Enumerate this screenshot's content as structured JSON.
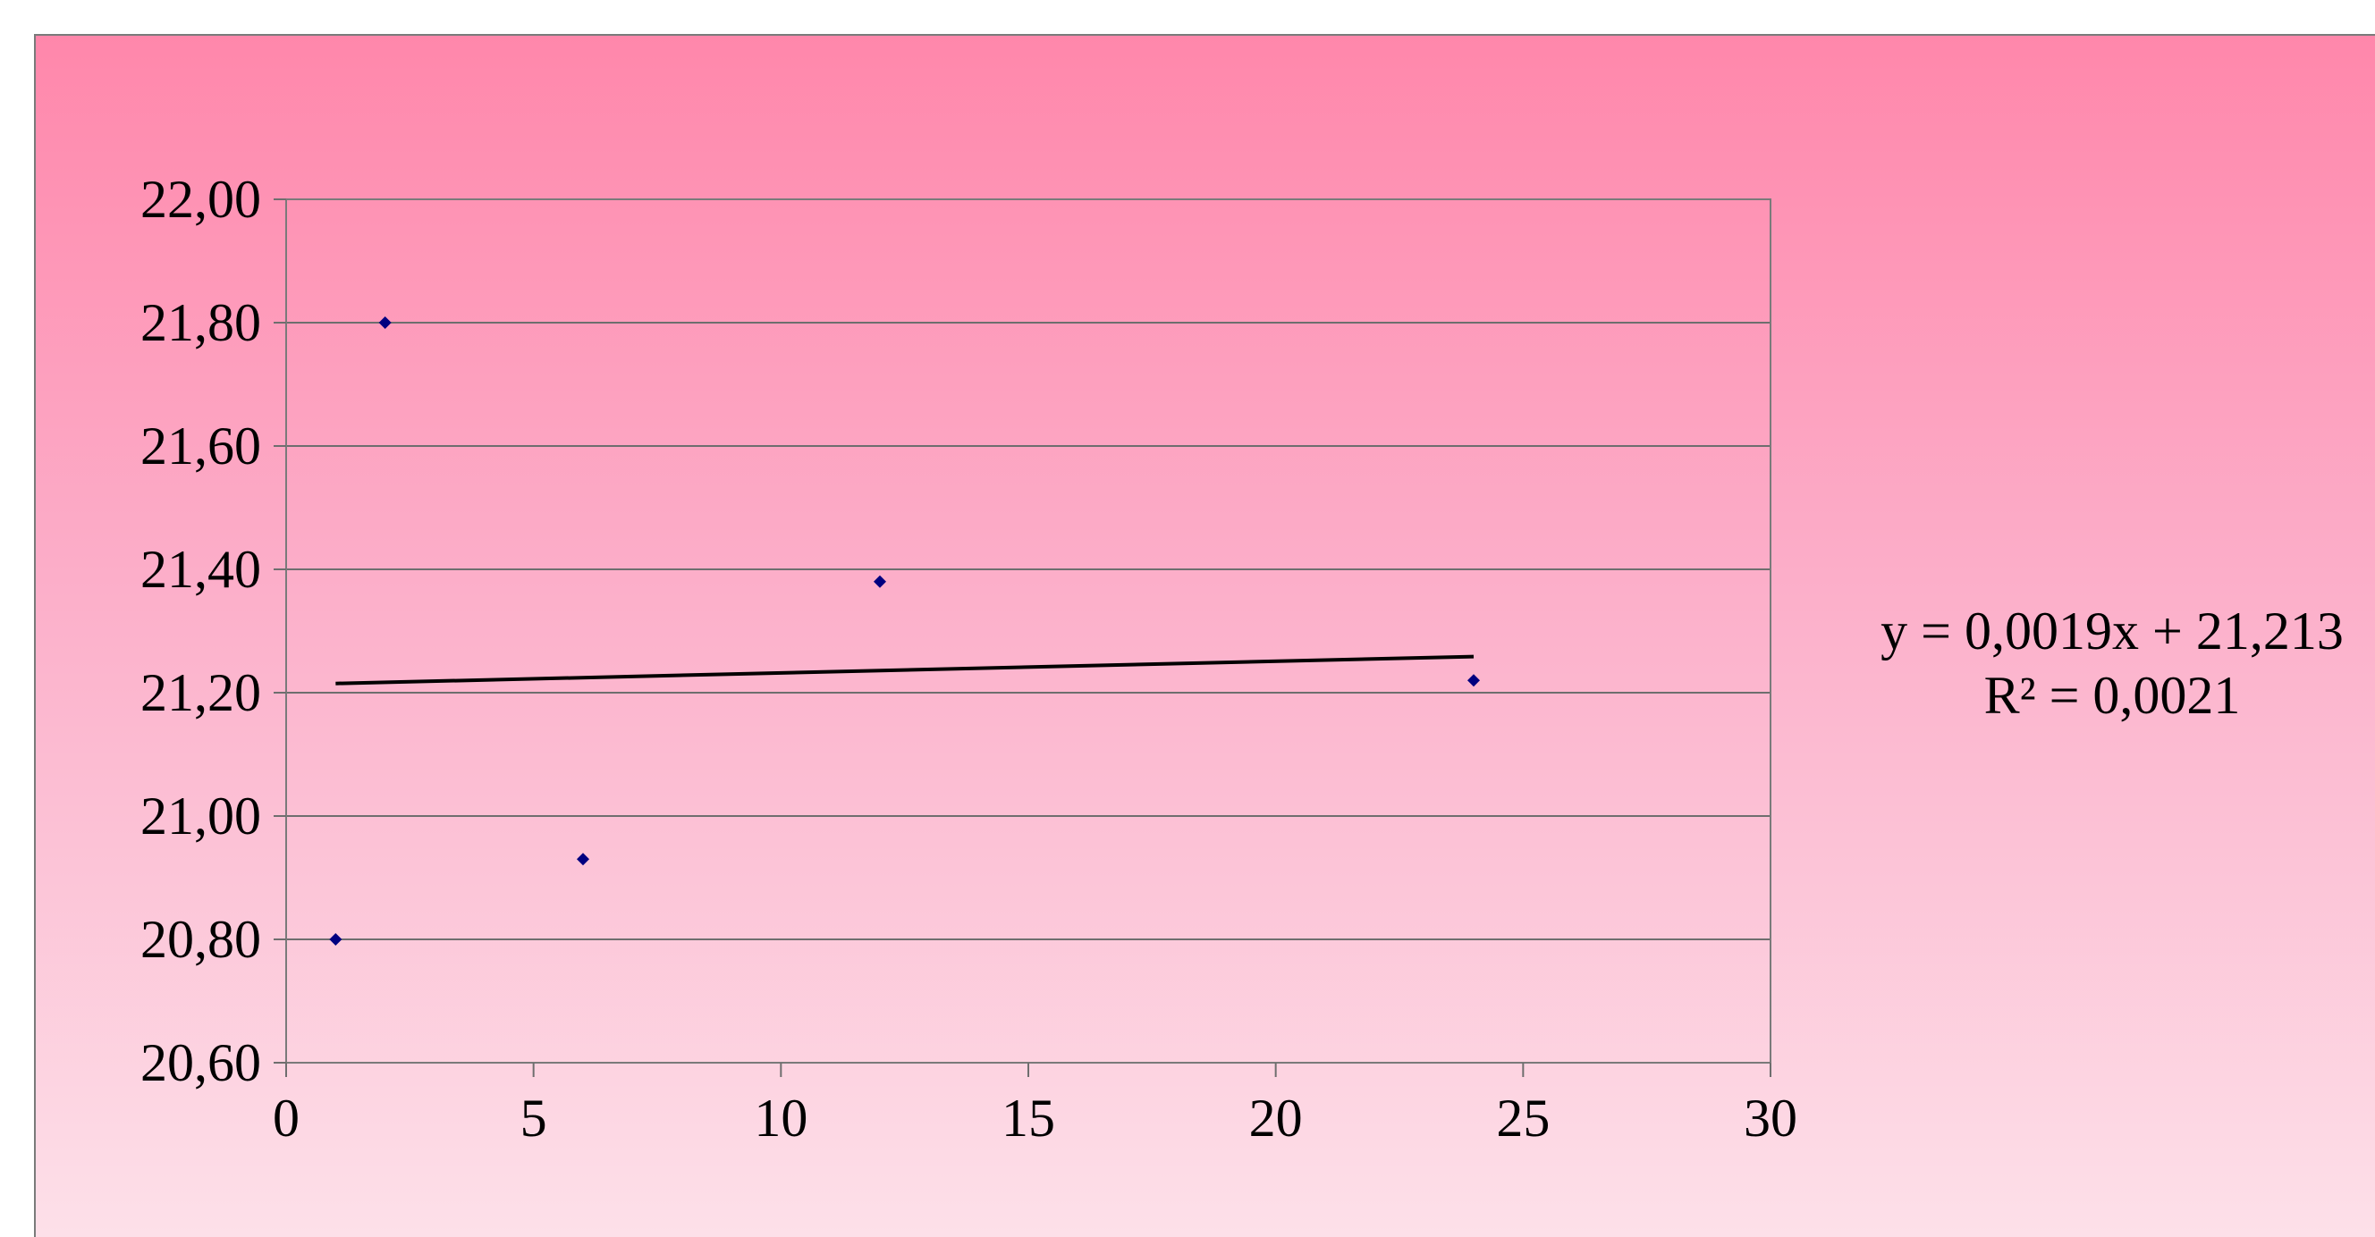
{
  "chart_data": {
    "type": "scatter",
    "title": "",
    "xlabel": "",
    "ylabel": "",
    "xlim": [
      0,
      30
    ],
    "ylim": [
      20.6,
      22.0
    ],
    "x_ticks": [
      "0",
      "5",
      "10",
      "15",
      "20",
      "25",
      "30"
    ],
    "y_ticks": [
      "20,60",
      "20,80",
      "21,00",
      "21,20",
      "21,40",
      "21,60",
      "21,80",
      "22,00"
    ],
    "grid": "horizontal",
    "legend": "none",
    "marker_color": "#000080",
    "series": [
      {
        "x": [
          1,
          2,
          6,
          12,
          24
        ],
        "y": [
          20.8,
          21.8,
          20.93,
          21.38,
          21.22
        ]
      }
    ],
    "trendline": {
      "type": "linear",
      "slope": 0.0019,
      "intercept": 21.213,
      "x_range": [
        1,
        24
      ],
      "equation": "y = 0,0019x + 21,213",
      "r_squared": "R² = 0,0021"
    }
  }
}
